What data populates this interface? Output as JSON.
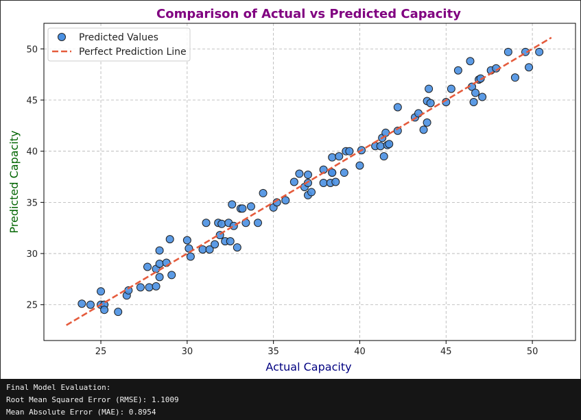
{
  "chart_data": {
    "type": "scatter",
    "title": "Comparison of Actual vs Predicted Capacity",
    "xlabel": "Actual Capacity",
    "ylabel": "Predicted Capacity",
    "xlim": [
      21.7,
      52.5
    ],
    "ylim": [
      21.5,
      52.5
    ],
    "xticks": [
      25,
      30,
      35,
      40,
      45,
      50
    ],
    "yticks": [
      25,
      30,
      35,
      40,
      45,
      50
    ],
    "grid": true,
    "legend_position": "top-left",
    "legend": [
      "Predicted Values",
      "Perfect Prediction Line"
    ],
    "colors": {
      "title": "#800080",
      "xlabel": "#000080",
      "ylabel": "#006400",
      "points": "#4a90e2",
      "line": "#e55b3c"
    },
    "series": [
      {
        "name": "Predicted Values",
        "kind": "scatter",
        "points": [
          [
            23.9,
            25.1
          ],
          [
            24.4,
            25.0
          ],
          [
            25.0,
            26.3
          ],
          [
            25.0,
            25.0
          ],
          [
            25.2,
            25.0
          ],
          [
            25.2,
            24.5
          ],
          [
            26.0,
            24.3
          ],
          [
            26.5,
            25.9
          ],
          [
            26.6,
            26.4
          ],
          [
            27.3,
            26.7
          ],
          [
            27.7,
            28.7
          ],
          [
            27.8,
            26.7
          ],
          [
            28.2,
            26.8
          ],
          [
            28.2,
            28.5
          ],
          [
            28.4,
            29.0
          ],
          [
            28.4,
            30.3
          ],
          [
            28.4,
            27.7
          ],
          [
            28.8,
            29.1
          ],
          [
            29.0,
            31.4
          ],
          [
            29.1,
            27.9
          ],
          [
            30.0,
            31.3
          ],
          [
            30.1,
            30.5
          ],
          [
            30.2,
            29.7
          ],
          [
            30.9,
            30.4
          ],
          [
            31.1,
            33.0
          ],
          [
            31.3,
            30.4
          ],
          [
            31.6,
            30.9
          ],
          [
            31.8,
            33.0
          ],
          [
            31.9,
            31.8
          ],
          [
            32.0,
            32.9
          ],
          [
            32.2,
            31.2
          ],
          [
            32.4,
            33.0
          ],
          [
            32.5,
            31.2
          ],
          [
            32.6,
            34.8
          ],
          [
            32.7,
            32.7
          ],
          [
            32.9,
            30.6
          ],
          [
            33.1,
            34.4
          ],
          [
            33.2,
            34.4
          ],
          [
            33.4,
            33.0
          ],
          [
            33.7,
            34.6
          ],
          [
            34.1,
            33.0
          ],
          [
            34.4,
            35.9
          ],
          [
            35.0,
            34.5
          ],
          [
            35.2,
            35.0
          ],
          [
            35.7,
            35.2
          ],
          [
            36.2,
            37.0
          ],
          [
            36.5,
            37.8
          ],
          [
            36.8,
            36.5
          ],
          [
            37.0,
            37.7
          ],
          [
            37.0,
            36.9
          ],
          [
            37.0,
            35.7
          ],
          [
            37.2,
            36.0
          ],
          [
            37.9,
            38.2
          ],
          [
            37.9,
            36.9
          ],
          [
            38.3,
            36.9
          ],
          [
            38.4,
            37.9
          ],
          [
            38.4,
            39.4
          ],
          [
            38.4,
            37.9
          ],
          [
            38.6,
            37.0
          ],
          [
            38.8,
            39.5
          ],
          [
            39.1,
            37.9
          ],
          [
            39.2,
            40.0
          ],
          [
            39.4,
            40.0
          ],
          [
            40.0,
            38.6
          ],
          [
            40.1,
            40.1
          ],
          [
            40.9,
            40.5
          ],
          [
            41.2,
            40.5
          ],
          [
            41.3,
            41.3
          ],
          [
            41.4,
            39.5
          ],
          [
            41.5,
            41.8
          ],
          [
            41.6,
            40.6
          ],
          [
            41.7,
            40.7
          ],
          [
            42.2,
            42.0
          ],
          [
            42.2,
            44.3
          ],
          [
            43.2,
            43.3
          ],
          [
            43.4,
            43.7
          ],
          [
            43.7,
            42.1
          ],
          [
            43.9,
            42.8
          ],
          [
            43.9,
            44.9
          ],
          [
            44.0,
            46.1
          ],
          [
            44.1,
            44.7
          ],
          [
            45.0,
            44.8
          ],
          [
            45.3,
            46.1
          ],
          [
            45.7,
            47.9
          ],
          [
            46.4,
            48.8
          ],
          [
            46.5,
            46.3
          ],
          [
            46.6,
            44.8
          ],
          [
            46.7,
            45.7
          ],
          [
            46.9,
            47.0
          ],
          [
            47.0,
            47.1
          ],
          [
            47.1,
            45.3
          ],
          [
            47.6,
            47.9
          ],
          [
            47.9,
            48.1
          ],
          [
            48.6,
            49.7
          ],
          [
            49.0,
            47.2
          ],
          [
            49.6,
            49.7
          ],
          [
            49.8,
            48.2
          ],
          [
            50.4,
            49.7
          ]
        ]
      },
      {
        "name": "Perfect Prediction Line",
        "kind": "line",
        "x": [
          23.0,
          51.1
        ],
        "y": [
          23.0,
          51.1
        ]
      }
    ]
  },
  "console": {
    "lines": [
      "Final Model Evaluation:",
      "Root Mean Squared Error (RMSE): 1.1009",
      "Mean Absolute Error (MAE): 0.8954"
    ]
  }
}
